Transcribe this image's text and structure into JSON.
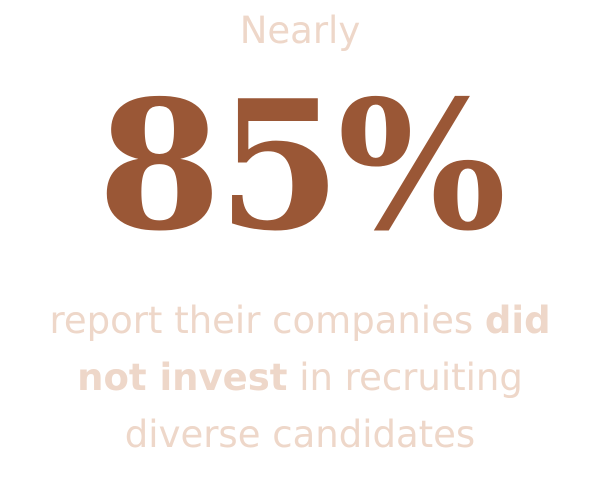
{
  "lead": "Nearly",
  "stat": "85%",
  "caption": {
    "line1_plain": "report their companies",
    "line1_bold": "did",
    "line2_bold": "not invest",
    "line2_plain": "in recruiting",
    "line3_plain": "diverse candidates"
  },
  "colors": {
    "accent": "#9a5736",
    "light_text": "#eed7c9",
    "background": "#ffffff"
  }
}
